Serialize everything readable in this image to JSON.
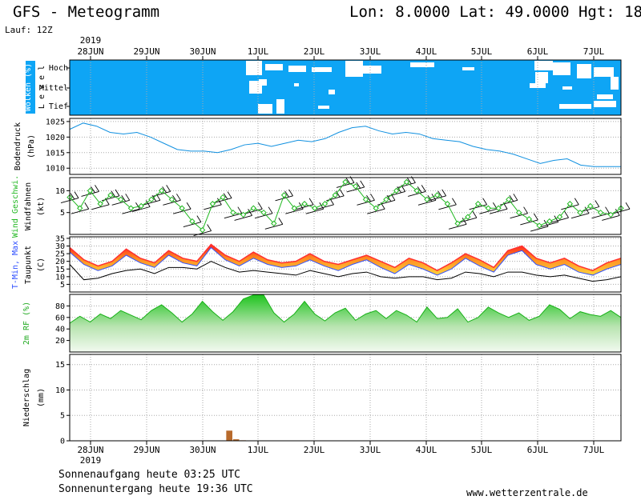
{
  "header": {
    "title": "GFS - Meteogramm",
    "location": "Lon: 8.0000 Lat: 49.0000 Hgt: 18",
    "run": "Lauf: 12Z"
  },
  "footer": {
    "sunrise": "Sonnenaufgang heute 03:25 UTC",
    "sunset": "Sonnenuntergang heute 19:36 UTC",
    "site": "www.wetterzentrale.de"
  },
  "chart_data": {
    "type": "line",
    "year": "2019",
    "days": [
      "28JUN",
      "29JUN",
      "30JUN",
      "1JUL",
      "2JUL",
      "3JUL",
      "4JUL",
      "5JUL",
      "6JUL",
      "7JUL"
    ],
    "panels": [
      {
        "id": "clouds",
        "type": "heatmap",
        "ylabel": "Wolken (%)",
        "ylabel2": "L e v e l",
        "levels": [
          "Hoch",
          "Mittel",
          "Tief"
        ],
        "colors": {
          "bg": "#0ea5f5",
          "gap": "#ffffff"
        }
      },
      {
        "id": "pressure",
        "type": "line",
        "ylabel": "Bodendruck",
        "ylabel2": "(hPa)",
        "ylim": [
          1008,
          1026
        ],
        "ticks": [
          1010,
          1015,
          1020,
          1025
        ],
        "series": [
          {
            "values": [
              1022.5,
              1024.5,
              1023.5,
              1021.5,
              1021,
              1021.5,
              1020,
              1018,
              1016,
              1015.5,
              1015.5,
              1015,
              1016,
              1017.5,
              1018,
              1017,
              1018,
              1019,
              1018.5,
              1019.5,
              1021.5,
              1023,
              1023.5,
              1022,
              1021,
              1021.5,
              1021,
              1019.5,
              1019,
              1018.5,
              1017,
              1016,
              1015.5,
              1014.5,
              1013,
              1011.5,
              1012.5,
              1013,
              1011,
              1010.5,
              1010.5,
              1010.5
            ],
            "color": "#1090e0"
          }
        ]
      },
      {
        "id": "wind",
        "type": "line",
        "ylabel": "Wind Geschwi.",
        "ylabel2": "Windfahnen",
        "ylabel3": "(kt)",
        "ylim": [
          0,
          13
        ],
        "ticks": [
          5,
          10
        ],
        "series": [
          {
            "values": [
              8.5,
              6,
              10,
              7,
              9,
              8,
              6,
              6.5,
              8,
              10,
              8,
              6,
              3,
              1,
              7,
              8.5,
              5,
              4.5,
              6,
              5,
              2.5,
              9,
              6,
              7,
              6,
              7,
              9,
              12,
              11,
              8,
              6,
              8,
              10,
              12,
              10,
              8,
              9,
              7,
              2.5,
              4,
              7,
              6,
              6,
              8,
              5,
              3.5,
              2,
              3,
              4,
              7,
              5,
              6.5,
              5,
              4.5,
              6
            ],
            "color": "#22b822",
            "marker": "diamond"
          }
        ]
      },
      {
        "id": "temp",
        "type": "area",
        "ylabel": "T-Min, Max",
        "ylabel2": "Taupunkt",
        "ylabel3": "(C)",
        "ylim": [
          0,
          36
        ],
        "ticks": [
          5,
          10,
          15,
          20,
          25,
          30,
          35
        ],
        "series": [
          {
            "name": "T-Max",
            "values": [
              29,
              21,
              17,
              20,
              28,
              22,
              19,
              27,
              22,
              20,
              31,
              24,
              20,
              26,
              21,
              19,
              20,
              25,
              20,
              18,
              21,
              24,
              20,
              16,
              22,
              19,
              14,
              19,
              25,
              21,
              16,
              27,
              30,
              22,
              19,
              22,
              17,
              14,
              19,
              22
            ]
          },
          {
            "name": "T-Min",
            "values": [
              26,
              18,
              14,
              17,
              24,
              19,
              16,
              24,
              19,
              17,
              29,
              21,
              17,
              22,
              18,
              16,
              17,
              21,
              17,
              14,
              18,
              21,
              16,
              12,
              18,
              15,
              11,
              15,
              22,
              17,
              13,
              24,
              27,
              18,
              15,
              18,
              13,
              11,
              15,
              18
            ]
          },
          {
            "name": "Taupunkt",
            "values": [
              18,
              8,
              9,
              12,
              14,
              15,
              12,
              16,
              16,
              15,
              20,
              16,
              13,
              14,
              13,
              12,
              11,
              14,
              12,
              10,
              12,
              13,
              10,
              9,
              10,
              10,
              8,
              9,
              13,
              12,
              10,
              13,
              13,
              11,
              10,
              11,
              9,
              7,
              8,
              10
            ]
          }
        ],
        "colors": {
          "max": "#ff3030",
          "grad1": "#ff8030",
          "grad2": "#ffd030",
          "tmin": "#3050ff",
          "dew": "#000000"
        }
      },
      {
        "id": "rh",
        "type": "area",
        "ylabel": "2m RF (%)",
        "ylim": [
          0,
          100
        ],
        "ticks": [
          20,
          40,
          60,
          80
        ],
        "series": [
          {
            "values": [
              50,
              62,
              52,
              66,
              58,
              72,
              64,
              56,
              72,
              82,
              68,
              52,
              66,
              88,
              70,
              55,
              70,
              92,
              99,
              99,
              68,
              52,
              66,
              88,
              66,
              54,
              68,
              76,
              55,
              66,
              72,
              58,
              72,
              64,
              52,
              78,
              58,
              60,
              75,
              52,
              60,
              78,
              68,
              60,
              68,
              55,
              62,
              82,
              74,
              58,
              70,
              65,
              62,
              72,
              60
            ],
            "color": "#22cc22"
          }
        ]
      },
      {
        "id": "precip",
        "type": "bar",
        "ylabel": "Niederschlag",
        "ylabel2": "(mm)",
        "ylim": [
          0,
          17
        ],
        "ticks": [
          0,
          5,
          10,
          15
        ],
        "series": [
          {
            "values": [
              0,
              0,
              0,
              0,
              0,
              0,
              0,
              0,
              0,
              0,
              0,
              0,
              0,
              0,
              0,
              0,
              0,
              0,
              0,
              0,
              0,
              0,
              0,
              2.0,
              0.3,
              0.1,
              0,
              0,
              0,
              0,
              0,
              0,
              0,
              0,
              0,
              0,
              0,
              0,
              0,
              0,
              0,
              0,
              0,
              0,
              0,
              0,
              0,
              0,
              0,
              0,
              0,
              0,
              0,
              0,
              0,
              0,
              0,
              0,
              0,
              0,
              0,
              0,
              0,
              0,
              0,
              0,
              0,
              0,
              0,
              0,
              0,
              0,
              0,
              0,
              0,
              0,
              0,
              0,
              0,
              0,
              0
            ],
            "color": "#b86a2c"
          }
        ]
      }
    ]
  }
}
